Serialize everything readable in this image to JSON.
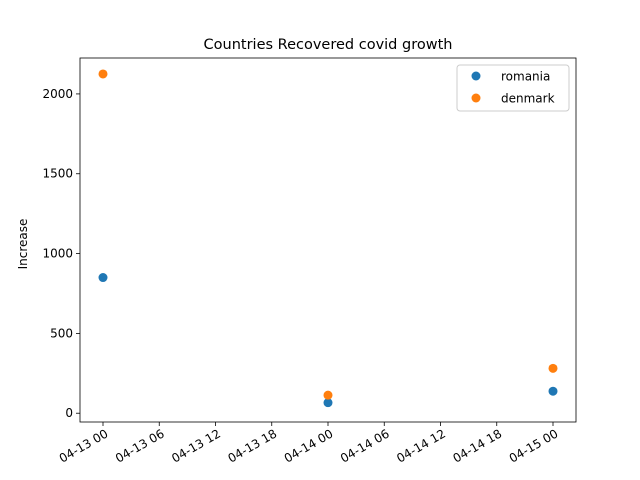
{
  "chart_data": {
    "type": "scatter",
    "title": "Countries Recovered covid growth",
    "xlabel": "",
    "ylabel": "Increase",
    "x_ticks": [
      "04-13 00",
      "04-13 06",
      "04-13 12",
      "04-13 18",
      "04-14 00",
      "04-14 06",
      "04-14 12",
      "04-14 18",
      "04-15 00"
    ],
    "y_ticks": [
      "0",
      "500",
      "1000",
      "1500",
      "2000"
    ],
    "x": [
      "2020-04-13 00:00",
      "2020-04-14 00:00",
      "2020-04-15 00:00"
    ],
    "series": [
      {
        "name": "romania",
        "color": "#1f77b4",
        "values": [
          850,
          66,
          138
        ]
      },
      {
        "name": "denmark",
        "color": "#ff7f0e",
        "values": [
          2125,
          113,
          281
        ]
      }
    ],
    "ylim": [
      -55,
      2225
    ],
    "grid": false,
    "legend_position": "upper right"
  }
}
